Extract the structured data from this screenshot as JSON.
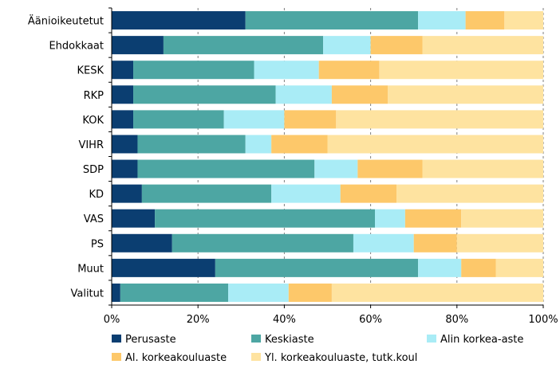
{
  "chart_data": {
    "type": "bar",
    "orientation": "horizontal",
    "stacked": true,
    "percent": true,
    "categories": [
      "Äänioikeutetut",
      "Ehdokkaat",
      "KESK",
      "RKP",
      "KOK",
      "VIHR",
      "SDP",
      "KD",
      "VAS",
      "PS",
      "Muut",
      "Valitut"
    ],
    "series": [
      {
        "name": "Perusaste",
        "color": "#0b3e71",
        "values": [
          31,
          12,
          5,
          5,
          5,
          6,
          6,
          7,
          10,
          14,
          24,
          2
        ]
      },
      {
        "name": "Keskiaste",
        "color": "#4da6a3",
        "values": [
          40,
          37,
          28,
          33,
          21,
          25,
          41,
          30,
          51,
          42,
          47,
          25
        ]
      },
      {
        "name": "Alin korkea-aste",
        "color": "#a9ecf6",
        "values": [
          11,
          11,
          15,
          13,
          14,
          6,
          10,
          16,
          7,
          14,
          10,
          14
        ]
      },
      {
        "name": "Al. korkeakouluaste",
        "color": "#fdc86a",
        "values": [
          9,
          12,
          14,
          13,
          12,
          13,
          15,
          13,
          13,
          10,
          8,
          10
        ]
      },
      {
        "name": "Yl. korkeakouluaste, tutk.koul",
        "color": "#fee3a0",
        "values": [
          9,
          28,
          38,
          36,
          48,
          50,
          28,
          34,
          19,
          20,
          11,
          49
        ]
      }
    ],
    "xlim": [
      0,
      100
    ],
    "xticks": [
      "0%",
      "20%",
      "40%",
      "60%",
      "80%",
      "100%"
    ],
    "grid": true,
    "legend_position": "bottom"
  }
}
